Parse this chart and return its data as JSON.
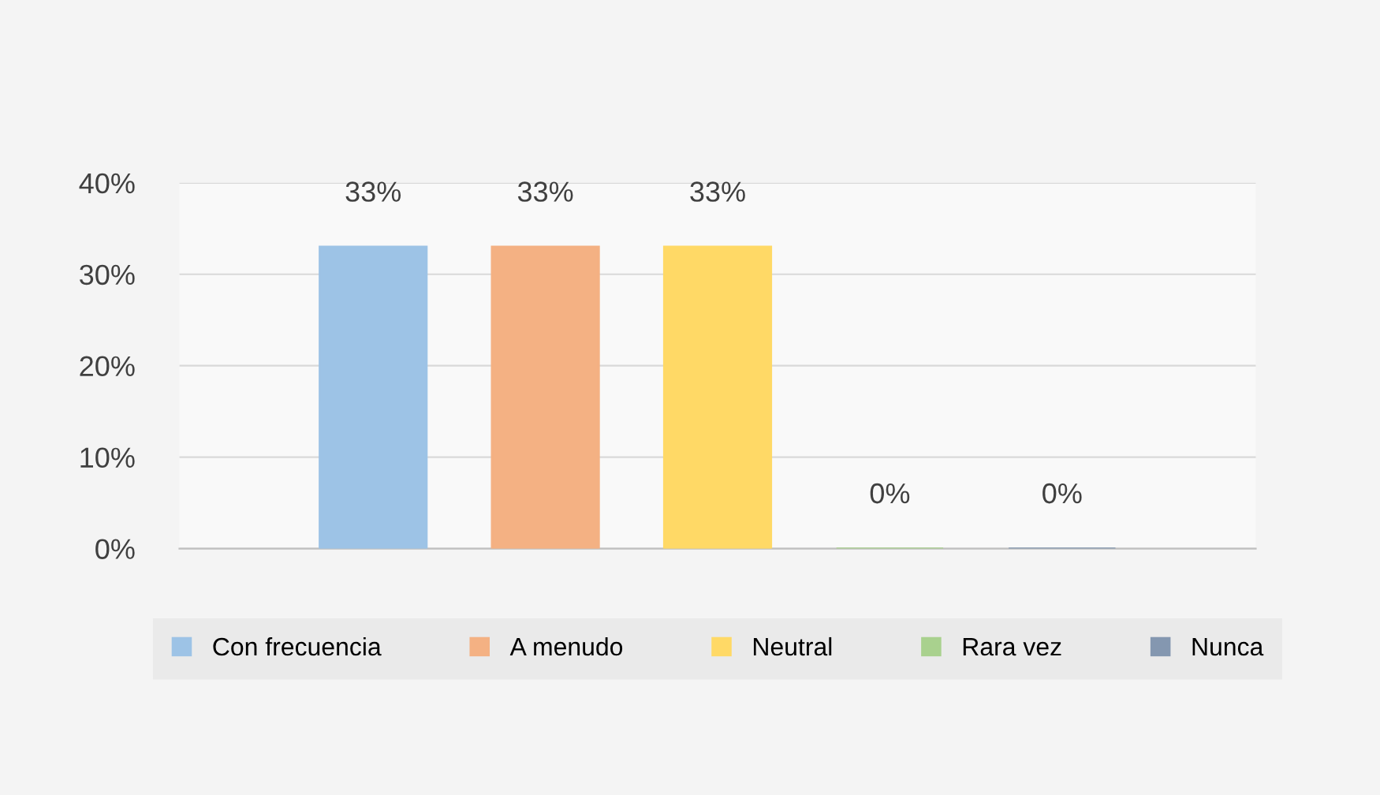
{
  "chart_data": {
    "type": "bar",
    "categories": [
      null
    ],
    "series": [
      {
        "name": "Con frecuencia",
        "color": "#9dc3e6",
        "values": [
          33
        ],
        "value_labels": [
          "33%"
        ]
      },
      {
        "name": "A menudo",
        "color": "#f4b183",
        "values": [
          33
        ],
        "value_labels": [
          "33%"
        ]
      },
      {
        "name": "Neutral",
        "color": "#ffd966",
        "values": [
          33
        ],
        "value_labels": [
          "33%"
        ]
      },
      {
        "name": "Rara vez",
        "color": "#a9d18e",
        "values": [
          0
        ],
        "value_labels": [
          "0%"
        ]
      },
      {
        "name": "Nunca",
        "color": "#8497b0",
        "values": [
          0
        ],
        "value_labels": [
          "0%"
        ]
      }
    ],
    "ylim": [
      0,
      40
    ],
    "yticks": [
      {
        "value": 0,
        "label": "0%"
      },
      {
        "value": 10,
        "label": "10%"
      },
      {
        "value": 20,
        "label": "20%"
      },
      {
        "value": 30,
        "label": "30%"
      },
      {
        "value": 40,
        "label": "40%"
      }
    ],
    "grid": "y",
    "legend": "bottom"
  }
}
